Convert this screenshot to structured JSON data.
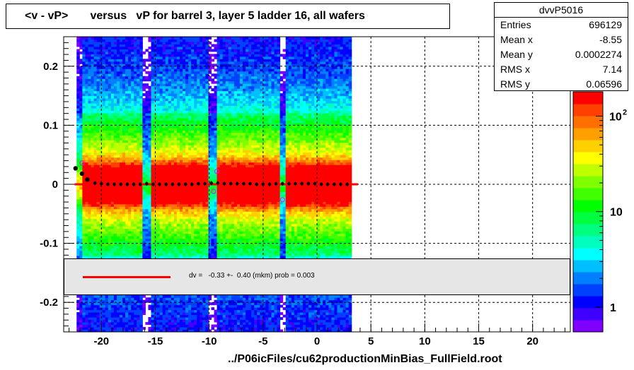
{
  "title": "<v - vP>       versus   vP for barrel 3, layer 5 ladder 16, all wafers",
  "footer": "../P06icFiles/cu62productionMinBias_FullField.root",
  "stats": {
    "name": "dvvP5016",
    "rows": [
      {
        "label": "Entries",
        "value": "696129"
      },
      {
        "label": "Mean x",
        "value": "-8.55"
      },
      {
        "label": "Mean y",
        "value": "0.0002274"
      },
      {
        "label": "RMS x",
        "value": "7.14"
      },
      {
        "label": "RMS y",
        "value": "0.06596"
      }
    ]
  },
  "fit_text": "dv =   -0.33 +-  0.40 (mkm) prob = 0.003",
  "colors": {
    "fit_line": "#ff0000",
    "profile_points": "#000000",
    "palette": [
      "#8000ff",
      "#4000ff",
      "#0000ff",
      "#0040ff",
      "#0080ff",
      "#00bfff",
      "#00ffff",
      "#00ffbf",
      "#00ff80",
      "#00ff40",
      "#00ff00",
      "#40ff00",
      "#80ff00",
      "#bfff00",
      "#ffff00",
      "#ffd000",
      "#ffa000",
      "#ff7000",
      "#ff4000",
      "#ff0000"
    ]
  },
  "chart_data": {
    "type": "heatmap",
    "title": "<v - vP>       versus   vP for barrel 3, layer 5 ladder 16, all wafers",
    "xlabel": "",
    "ylabel": "",
    "xlim": [
      -23.5,
      23.5
    ],
    "ylim": [
      -0.25,
      0.25
    ],
    "x_ticks": [
      -20,
      -15,
      -10,
      -5,
      0,
      5,
      10,
      15,
      20
    ],
    "y_ticks": [
      -0.2,
      -0.1,
      0,
      0.1,
      0.2
    ],
    "y_tick_labels": [
      "-0.2",
      "-0.1",
      "0",
      "0.1",
      "0.2"
    ],
    "grid": true,
    "colorbar": {
      "scale": "log",
      "tick_labels": [
        "1",
        "10",
        "10^2"
      ],
      "tick_values": [
        1,
        10,
        100
      ],
      "zmax": 180
    },
    "data_x_range": [
      -22.3,
      3.2
    ],
    "gap_columns": [
      -15.8,
      -9.6,
      -3.2
    ],
    "profile": {
      "x": [
        -22.4,
        -21.8,
        -21.3,
        -20.6,
        -20.0,
        -19.4,
        -18.8,
        -18.2,
        -17.6,
        -17.0,
        -16.4,
        -15.8,
        -15.2,
        -14.6,
        -14.0,
        -13.4,
        -12.8,
        -12.2,
        -11.6,
        -11.0,
        -10.4,
        -9.8,
        -9.2,
        -8.6,
        -8.0,
        -7.4,
        -6.8,
        -6.2,
        -5.6,
        -5.0,
        -4.4,
        -3.8,
        -3.2,
        -2.6,
        -2.0,
        -1.4,
        -0.8,
        -0.2,
        0.4,
        1.0,
        1.6,
        2.2,
        2.8
      ],
      "y": [
        0.027,
        0.018,
        0.008,
        0.002,
        0.001,
        0.0,
        0.0,
        0.0,
        0.0,
        0.0,
        0.0,
        0.001,
        0.0,
        0.0,
        0.0,
        0.0,
        0.0,
        0.0,
        0.0,
        0.001,
        0.001,
        0.002,
        0.002,
        0.001,
        0.001,
        0.001,
        0.001,
        0.001,
        0.0,
        0.0,
        0.0,
        0.001,
        0.001,
        0.001,
        0.001,
        0.001,
        0.001,
        0.001,
        0.0,
        0.0,
        0.0,
        0.0,
        0.0
      ]
    },
    "outliers": {
      "x": [
        -21.8,
        -9.6,
        -9.3,
        -3.2
      ],
      "y": [
        0.036,
        -0.012,
        0.022,
        -0.026
      ]
    },
    "fit": {
      "x": [
        -22.5,
        3.8
      ],
      "y": [
        0.0,
        0.0
      ]
    }
  }
}
